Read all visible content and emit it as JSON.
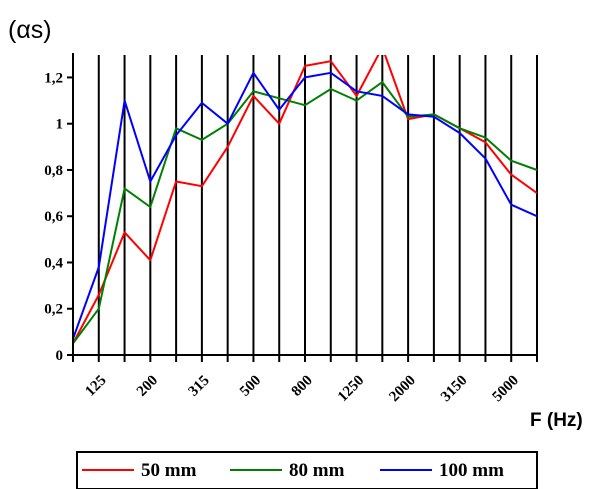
{
  "chart_data": {
    "type": "line",
    "ylabel": "(αs)",
    "xlabel": "F (Hz)",
    "ylim": [
      0,
      1.3
    ],
    "yticks": [
      0,
      0.2,
      0.4,
      0.6,
      0.8,
      1,
      1.2
    ],
    "ytick_labels": [
      "0",
      "0,2",
      "0,4",
      "0,6",
      "0,8",
      "1",
      "1,2"
    ],
    "x": [
      "100",
      "125",
      "160",
      "200",
      "250",
      "315",
      "400",
      "500",
      "630",
      "800",
      "1000",
      "1250",
      "1600",
      "2000",
      "2500",
      "3150",
      "4000",
      "5000",
      "6300"
    ],
    "xtick_labels_shown": [
      "125",
      "200",
      "315",
      "500",
      "800",
      "1250",
      "2000",
      "3150",
      "5000"
    ],
    "grid": "vertical",
    "legend_position": "bottom",
    "series": [
      {
        "name": "50 mm",
        "color": "#ff0000",
        "values": [
          0.05,
          0.26,
          0.53,
          0.41,
          0.75,
          0.73,
          0.9,
          1.12,
          1.0,
          1.25,
          1.27,
          1.12,
          1.33,
          1.02,
          1.04,
          0.98,
          0.92,
          0.78,
          0.7
        ]
      },
      {
        "name": "80 mm",
        "color": "#008000",
        "values": [
          0.05,
          0.2,
          0.72,
          0.64,
          0.98,
          0.93,
          1.0,
          1.14,
          1.11,
          1.08,
          1.15,
          1.1,
          1.18,
          1.03,
          1.04,
          0.98,
          0.94,
          0.84,
          0.8
        ]
      },
      {
        "name": "100 mm",
        "color": "#0000ff",
        "values": [
          0.07,
          0.38,
          1.1,
          0.75,
          0.95,
          1.09,
          1.0,
          1.22,
          1.06,
          1.2,
          1.22,
          1.14,
          1.12,
          1.04,
          1.03,
          0.96,
          0.85,
          0.65,
          0.6
        ]
      }
    ]
  }
}
